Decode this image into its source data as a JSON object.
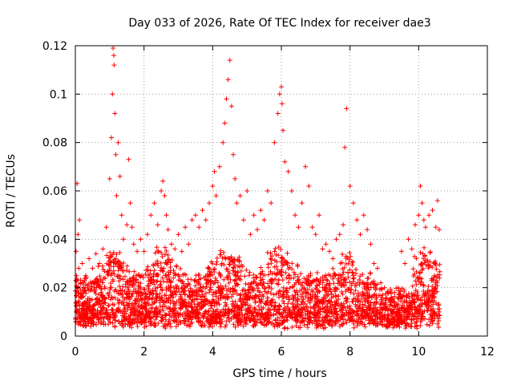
{
  "chart_data": {
    "type": "scatter",
    "title": "Day 033 of 2026, Rate Of TEC Index for receiver dae3",
    "xlabel": "GPS time / hours",
    "ylabel": "ROTI / TECUs",
    "xlim": [
      0,
      12
    ],
    "ylim": [
      0,
      0.12
    ],
    "x_ticks": [
      0,
      2,
      4,
      6,
      8,
      10,
      12
    ],
    "y_ticks": [
      0,
      0.02,
      0.04,
      0.06,
      0.08,
      0.1,
      0.12
    ],
    "x_tick_labels": [
      "0",
      "2",
      "4",
      "6",
      "8",
      "10",
      "12"
    ],
    "y_tick_labels": [
      "0",
      "0.02",
      "0.04",
      "0.06",
      "0.08",
      "0.1",
      "0.12"
    ],
    "grid": true,
    "marker": "+",
    "color": "#ff0000",
    "series": [
      {
        "name": "ROTI",
        "x": [
          0.02,
          0.05,
          0.08,
          0.1,
          0.12,
          0.15,
          0.2,
          0.3,
          0.4,
          0.5,
          0.6,
          0.7,
          0.8,
          0.9,
          1.0,
          1.05,
          1.08,
          1.1,
          1.12,
          1.13,
          1.15,
          1.18,
          1.2,
          1.25,
          1.3,
          1.35,
          1.4,
          1.5,
          1.55,
          1.6,
          1.65,
          1.7,
          1.8,
          1.9,
          2.0,
          2.1,
          2.2,
          2.3,
          2.4,
          2.5,
          2.55,
          2.6,
          2.65,
          2.7,
          2.8,
          2.9,
          3.0,
          3.1,
          3.2,
          3.3,
          3.4,
          3.5,
          3.6,
          3.7,
          3.8,
          3.9,
          4.0,
          4.05,
          4.1,
          4.2,
          4.3,
          4.35,
          4.4,
          4.45,
          4.5,
          4.55,
          4.6,
          4.65,
          4.7,
          4.8,
          4.9,
          5.0,
          5.1,
          5.2,
          5.3,
          5.4,
          5.5,
          5.6,
          5.7,
          5.8,
          5.9,
          5.95,
          6.0,
          6.02,
          6.05,
          6.1,
          6.2,
          6.3,
          6.4,
          6.5,
          6.6,
          6.7,
          6.8,
          6.9,
          7.0,
          7.1,
          7.2,
          7.3,
          7.4,
          7.5,
          7.6,
          7.7,
          7.8,
          7.85,
          7.9,
          8.0,
          8.1,
          8.2,
          8.3,
          8.4,
          8.5,
          8.6,
          8.7,
          8.8,
          8.9,
          9.0,
          9.1,
          9.2,
          9.3,
          9.4,
          9.5,
          9.6,
          9.7,
          9.8,
          9.9,
          10.0,
          10.05,
          10.1,
          10.15,
          10.2,
          10.3,
          10.4,
          10.5,
          10.55,
          10.6
        ],
        "y": [
          0.035,
          0.063,
          0.042,
          0.028,
          0.048,
          0.022,
          0.03,
          0.025,
          0.032,
          0.028,
          0.034,
          0.03,
          0.036,
          0.045,
          0.065,
          0.082,
          0.1,
          0.119,
          0.116,
          0.112,
          0.092,
          0.075,
          0.058,
          0.08,
          0.066,
          0.05,
          0.04,
          0.046,
          0.073,
          0.055,
          0.045,
          0.038,
          0.035,
          0.04,
          0.035,
          0.042,
          0.05,
          0.055,
          0.046,
          0.06,
          0.064,
          0.058,
          0.05,
          0.044,
          0.038,
          0.036,
          0.042,
          0.035,
          0.045,
          0.038,
          0.048,
          0.05,
          0.045,
          0.052,
          0.048,
          0.055,
          0.062,
          0.068,
          0.058,
          0.07,
          0.08,
          0.088,
          0.098,
          0.106,
          0.114,
          0.095,
          0.075,
          0.065,
          0.055,
          0.058,
          0.048,
          0.06,
          0.042,
          0.05,
          0.044,
          0.052,
          0.048,
          0.06,
          0.055,
          0.08,
          0.092,
          0.1,
          0.103,
          0.096,
          0.085,
          0.072,
          0.068,
          0.06,
          0.05,
          0.045,
          0.055,
          0.07,
          0.062,
          0.045,
          0.042,
          0.05,
          0.036,
          0.038,
          0.035,
          0.032,
          0.04,
          0.042,
          0.046,
          0.078,
          0.094,
          0.062,
          0.055,
          0.048,
          0.042,
          0.05,
          0.044,
          0.038,
          0.03,
          0.028,
          0.022,
          0.02,
          0.018,
          0.016,
          0.018,
          0.02,
          0.035,
          0.03,
          0.04,
          0.036,
          0.046,
          0.05,
          0.062,
          0.055,
          0.048,
          0.045,
          0.05,
          0.052,
          0.045,
          0.056,
          0.044
        ]
      }
    ],
    "background_density": "dense points between 0.003 and 0.035 TECUs throughout 0-10.6 hours"
  }
}
